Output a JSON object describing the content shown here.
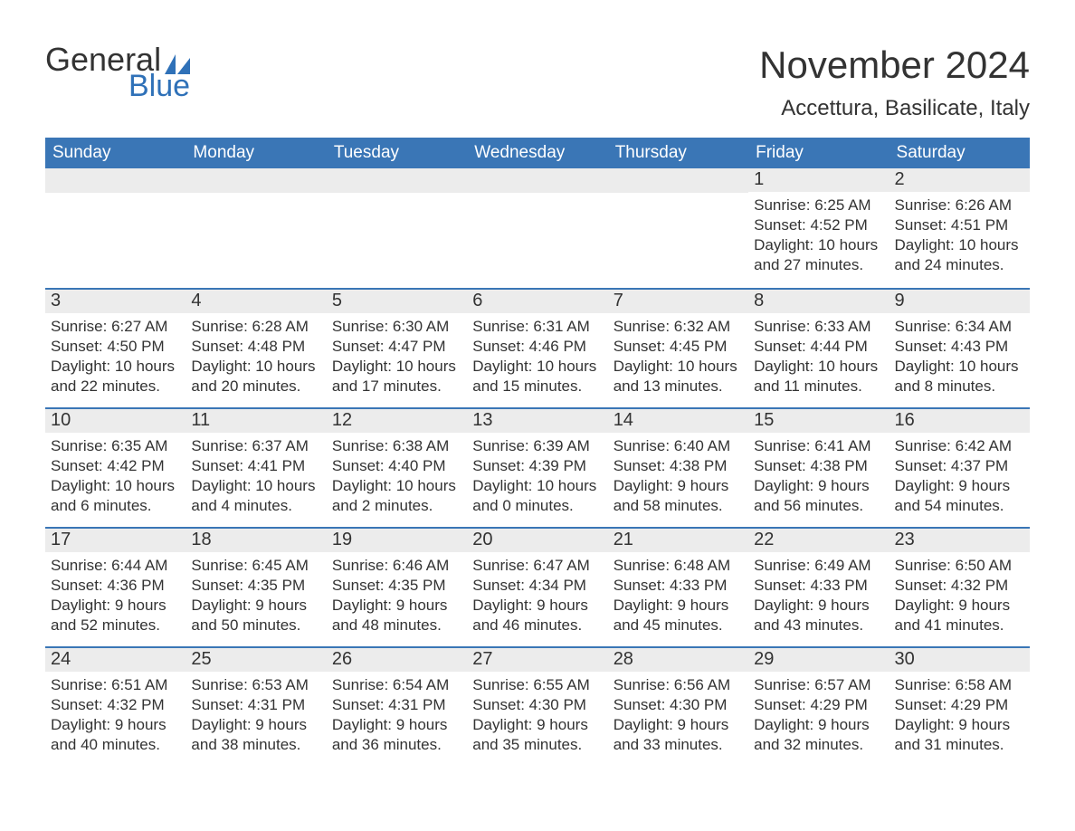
{
  "brand": {
    "word1": "General",
    "word2": "Blue"
  },
  "colors": {
    "header_bg": "#3a76b6",
    "header_text": "#ffffff",
    "row_divider": "#3a76b6",
    "daynum_bg": "#ececec",
    "text": "#333333",
    "logo_blue": "#2f71b8",
    "page_bg": "#ffffff"
  },
  "typography": {
    "month_title_size": 42,
    "location_size": 24,
    "weekday_size": 19,
    "daynum_size": 20,
    "body_size": 17,
    "logo_size": 36
  },
  "title": "November 2024",
  "location": "Accettura, Basilicate, Italy",
  "weekdays": [
    "Sunday",
    "Monday",
    "Tuesday",
    "Wednesday",
    "Thursday",
    "Friday",
    "Saturday"
  ],
  "weeks": [
    [
      null,
      null,
      null,
      null,
      null,
      {
        "n": "1",
        "sr": "Sunrise: 6:25 AM",
        "ss": "Sunset: 4:52 PM",
        "d1": "Daylight: 10 hours",
        "d2": "and 27 minutes."
      },
      {
        "n": "2",
        "sr": "Sunrise: 6:26 AM",
        "ss": "Sunset: 4:51 PM",
        "d1": "Daylight: 10 hours",
        "d2": "and 24 minutes."
      }
    ],
    [
      {
        "n": "3",
        "sr": "Sunrise: 6:27 AM",
        "ss": "Sunset: 4:50 PM",
        "d1": "Daylight: 10 hours",
        "d2": "and 22 minutes."
      },
      {
        "n": "4",
        "sr": "Sunrise: 6:28 AM",
        "ss": "Sunset: 4:48 PM",
        "d1": "Daylight: 10 hours",
        "d2": "and 20 minutes."
      },
      {
        "n": "5",
        "sr": "Sunrise: 6:30 AM",
        "ss": "Sunset: 4:47 PM",
        "d1": "Daylight: 10 hours",
        "d2": "and 17 minutes."
      },
      {
        "n": "6",
        "sr": "Sunrise: 6:31 AM",
        "ss": "Sunset: 4:46 PM",
        "d1": "Daylight: 10 hours",
        "d2": "and 15 minutes."
      },
      {
        "n": "7",
        "sr": "Sunrise: 6:32 AM",
        "ss": "Sunset: 4:45 PM",
        "d1": "Daylight: 10 hours",
        "d2": "and 13 minutes."
      },
      {
        "n": "8",
        "sr": "Sunrise: 6:33 AM",
        "ss": "Sunset: 4:44 PM",
        "d1": "Daylight: 10 hours",
        "d2": "and 11 minutes."
      },
      {
        "n": "9",
        "sr": "Sunrise: 6:34 AM",
        "ss": "Sunset: 4:43 PM",
        "d1": "Daylight: 10 hours",
        "d2": "and 8 minutes."
      }
    ],
    [
      {
        "n": "10",
        "sr": "Sunrise: 6:35 AM",
        "ss": "Sunset: 4:42 PM",
        "d1": "Daylight: 10 hours",
        "d2": "and 6 minutes."
      },
      {
        "n": "11",
        "sr": "Sunrise: 6:37 AM",
        "ss": "Sunset: 4:41 PM",
        "d1": "Daylight: 10 hours",
        "d2": "and 4 minutes."
      },
      {
        "n": "12",
        "sr": "Sunrise: 6:38 AM",
        "ss": "Sunset: 4:40 PM",
        "d1": "Daylight: 10 hours",
        "d2": "and 2 minutes."
      },
      {
        "n": "13",
        "sr": "Sunrise: 6:39 AM",
        "ss": "Sunset: 4:39 PM",
        "d1": "Daylight: 10 hours",
        "d2": "and 0 minutes."
      },
      {
        "n": "14",
        "sr": "Sunrise: 6:40 AM",
        "ss": "Sunset: 4:38 PM",
        "d1": "Daylight: 9 hours",
        "d2": "and 58 minutes."
      },
      {
        "n": "15",
        "sr": "Sunrise: 6:41 AM",
        "ss": "Sunset: 4:38 PM",
        "d1": "Daylight: 9 hours",
        "d2": "and 56 minutes."
      },
      {
        "n": "16",
        "sr": "Sunrise: 6:42 AM",
        "ss": "Sunset: 4:37 PM",
        "d1": "Daylight: 9 hours",
        "d2": "and 54 minutes."
      }
    ],
    [
      {
        "n": "17",
        "sr": "Sunrise: 6:44 AM",
        "ss": "Sunset: 4:36 PM",
        "d1": "Daylight: 9 hours",
        "d2": "and 52 minutes."
      },
      {
        "n": "18",
        "sr": "Sunrise: 6:45 AM",
        "ss": "Sunset: 4:35 PM",
        "d1": "Daylight: 9 hours",
        "d2": "and 50 minutes."
      },
      {
        "n": "19",
        "sr": "Sunrise: 6:46 AM",
        "ss": "Sunset: 4:35 PM",
        "d1": "Daylight: 9 hours",
        "d2": "and 48 minutes."
      },
      {
        "n": "20",
        "sr": "Sunrise: 6:47 AM",
        "ss": "Sunset: 4:34 PM",
        "d1": "Daylight: 9 hours",
        "d2": "and 46 minutes."
      },
      {
        "n": "21",
        "sr": "Sunrise: 6:48 AM",
        "ss": "Sunset: 4:33 PM",
        "d1": "Daylight: 9 hours",
        "d2": "and 45 minutes."
      },
      {
        "n": "22",
        "sr": "Sunrise: 6:49 AM",
        "ss": "Sunset: 4:33 PM",
        "d1": "Daylight: 9 hours",
        "d2": "and 43 minutes."
      },
      {
        "n": "23",
        "sr": "Sunrise: 6:50 AM",
        "ss": "Sunset: 4:32 PM",
        "d1": "Daylight: 9 hours",
        "d2": "and 41 minutes."
      }
    ],
    [
      {
        "n": "24",
        "sr": "Sunrise: 6:51 AM",
        "ss": "Sunset: 4:32 PM",
        "d1": "Daylight: 9 hours",
        "d2": "and 40 minutes."
      },
      {
        "n": "25",
        "sr": "Sunrise: 6:53 AM",
        "ss": "Sunset: 4:31 PM",
        "d1": "Daylight: 9 hours",
        "d2": "and 38 minutes."
      },
      {
        "n": "26",
        "sr": "Sunrise: 6:54 AM",
        "ss": "Sunset: 4:31 PM",
        "d1": "Daylight: 9 hours",
        "d2": "and 36 minutes."
      },
      {
        "n": "27",
        "sr": "Sunrise: 6:55 AM",
        "ss": "Sunset: 4:30 PM",
        "d1": "Daylight: 9 hours",
        "d2": "and 35 minutes."
      },
      {
        "n": "28",
        "sr": "Sunrise: 6:56 AM",
        "ss": "Sunset: 4:30 PM",
        "d1": "Daylight: 9 hours",
        "d2": "and 33 minutes."
      },
      {
        "n": "29",
        "sr": "Sunrise: 6:57 AM",
        "ss": "Sunset: 4:29 PM",
        "d1": "Daylight: 9 hours",
        "d2": "and 32 minutes."
      },
      {
        "n": "30",
        "sr": "Sunrise: 6:58 AM",
        "ss": "Sunset: 4:29 PM",
        "d1": "Daylight: 9 hours",
        "d2": "and 31 minutes."
      }
    ]
  ]
}
